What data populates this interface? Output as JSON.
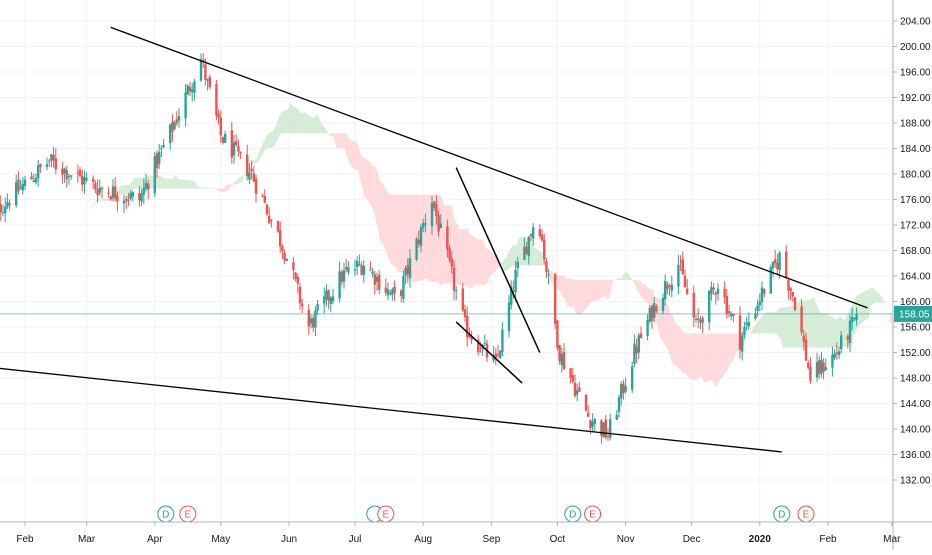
{
  "chart_data": {
    "type": "candlestick",
    "title": "",
    "xlabel": "",
    "ylabel": "",
    "ylim": [
      132,
      206
    ],
    "y_ticks": [
      "132.00",
      "136.00",
      "140.00",
      "144.00",
      "148.00",
      "152.00",
      "156.00",
      "160.00",
      "164.00",
      "168.00",
      "172.00",
      "176.00",
      "180.00",
      "184.00",
      "188.00",
      "192.00",
      "196.00",
      "200.00",
      "204.00"
    ],
    "x_ticks": [
      "Feb",
      "Mar",
      "Apr",
      "May",
      "Jun",
      "Jul",
      "Aug",
      "Sep",
      "Oct",
      "Nov",
      "Dec",
      "2020",
      "Feb",
      "Mar"
    ],
    "last_price": "158.05",
    "grid": true,
    "colors": {
      "up": "#26a69a",
      "down": "#ef5350",
      "cloud_bull": "#c8e6c9",
      "cloud_bear": "#ffcdd2",
      "trendline": "#000000",
      "price_line": "#26a69a",
      "grid": "#f0f3fa",
      "axis_text": "#131722"
    },
    "price_path_anchors": [
      {
        "date": "2019-01-15",
        "close": 173
      },
      {
        "date": "2019-02-12",
        "close": 182
      },
      {
        "date": "2019-03-05",
        "close": 178
      },
      {
        "date": "2019-03-25",
        "close": 176
      },
      {
        "date": "2019-04-10",
        "close": 188
      },
      {
        "date": "2019-04-22",
        "close": 198
      },
      {
        "date": "2019-05-01",
        "close": 186
      },
      {
        "date": "2019-05-15",
        "close": 180
      },
      {
        "date": "2019-05-30",
        "close": 168
      },
      {
        "date": "2019-06-10",
        "close": 156
      },
      {
        "date": "2019-06-25",
        "close": 164
      },
      {
        "date": "2019-07-05",
        "close": 166
      },
      {
        "date": "2019-07-20",
        "close": 160
      },
      {
        "date": "2019-08-05",
        "close": 176
      },
      {
        "date": "2019-08-20",
        "close": 156
      },
      {
        "date": "2019-09-03",
        "close": 150
      },
      {
        "date": "2019-09-12",
        "close": 164
      },
      {
        "date": "2019-09-22",
        "close": 174
      },
      {
        "date": "2019-10-02",
        "close": 152
      },
      {
        "date": "2019-10-15",
        "close": 142
      },
      {
        "date": "2019-10-24",
        "close": 139
      },
      {
        "date": "2019-11-05",
        "close": 152
      },
      {
        "date": "2019-11-15",
        "close": 160
      },
      {
        "date": "2019-11-25",
        "close": 166
      },
      {
        "date": "2019-12-03",
        "close": 156
      },
      {
        "date": "2019-12-13",
        "close": 163
      },
      {
        "date": "2019-12-23",
        "close": 154
      },
      {
        "date": "2020-01-03",
        "close": 162
      },
      {
        "date": "2020-01-10",
        "close": 167
      },
      {
        "date": "2020-01-17",
        "close": 160
      },
      {
        "date": "2020-01-24",
        "close": 148
      },
      {
        "date": "2020-02-05",
        "close": 152
      },
      {
        "date": "2020-02-15",
        "close": 158.05
      }
    ],
    "trendlines": [
      {
        "name": "upper-resistance",
        "from": {
          "date": "2019-03-12",
          "y": 203
        },
        "to": {
          "date": "2020-02-19",
          "y": 159
        }
      },
      {
        "name": "lower-support",
        "from": {
          "date": "2019-01-07",
          "y": 150
        },
        "to": {
          "date": "2020-01-11",
          "y": 136.4
        }
      },
      {
        "name": "flag-upper",
        "from": {
          "date": "2019-08-16",
          "y": 181
        },
        "to": {
          "date": "2019-09-23",
          "y": 152
        }
      },
      {
        "name": "flag-lower",
        "from": {
          "date": "2019-08-16",
          "y": 156.8
        },
        "to": {
          "date": "2019-09-15",
          "y": 147.2
        }
      }
    ],
    "events": [
      {
        "label": "D",
        "date": "2019-04-06",
        "kind": "dividend"
      },
      {
        "label": "E",
        "date": "2019-04-16",
        "kind": "earnings"
      },
      {
        "label": "",
        "date": "2019-07-10",
        "kind": "dividend"
      },
      {
        "label": "E",
        "date": "2019-07-15",
        "kind": "earnings"
      },
      {
        "label": "D",
        "date": "2019-10-08",
        "kind": "dividend"
      },
      {
        "label": "E",
        "date": "2019-10-17",
        "kind": "earnings"
      },
      {
        "label": "D",
        "date": "2020-01-11",
        "kind": "dividend"
      },
      {
        "label": "E",
        "date": "2020-01-22",
        "kind": "earnings"
      }
    ]
  }
}
